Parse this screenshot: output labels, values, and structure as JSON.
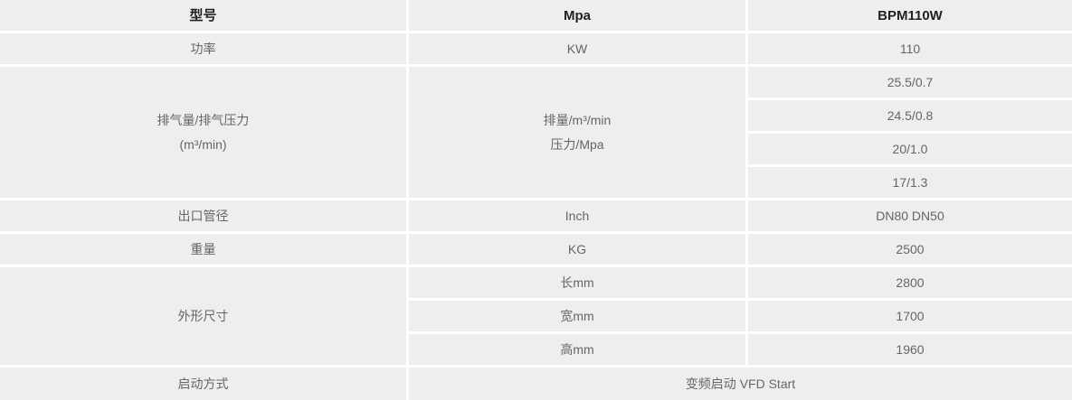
{
  "table": {
    "header": {
      "model_label": "型号",
      "unit_label": "Mpa",
      "model_value": "BPM110W"
    },
    "power": {
      "label": "功率",
      "unit": "KW",
      "value": "110"
    },
    "discharge": {
      "label_line1": "排气量/排气压力",
      "label_line2": "(m³/min)",
      "unit_line1": "排量/m³/min",
      "unit_line2": "压力/Mpa",
      "values": [
        "25.5/0.7",
        "24.5/0.8",
        "20/1.0",
        "17/1.3"
      ]
    },
    "outlet": {
      "label": "出口管径",
      "unit": "Inch",
      "value": "DN80 DN50"
    },
    "weight": {
      "label": "重量",
      "unit": "KG",
      "value": "2500"
    },
    "dimensions": {
      "label": "外形尺寸",
      "rows": [
        {
          "unit": "长mm",
          "value": "2800"
        },
        {
          "unit": "宽mm",
          "value": "1700"
        },
        {
          "unit": "高mm",
          "value": "1960"
        }
      ]
    },
    "start": {
      "label": "启动方式",
      "value": "变频启动 VFD Start"
    }
  },
  "colors": {
    "cell_background": "#eeeeee",
    "gutter": "#ffffff",
    "header_text": "#222222",
    "body_text": "#666666"
  }
}
